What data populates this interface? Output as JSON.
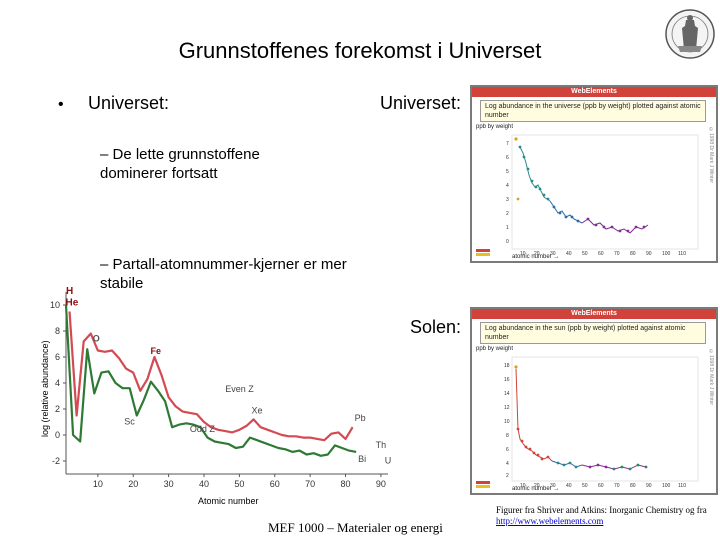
{
  "slide": {
    "title": "Grunnstoffenes forekomst i Universet",
    "bullet_dot": "•",
    "bullet_main": "Universet:",
    "sub1": "– De lette grunnstoffene dominerer fortsatt",
    "sub2": "– Partall-atomnummer-kjerner er mer stabile",
    "label_universe": "Universet:",
    "label_sun": "Solen:",
    "footer": "MEF 1000 – Materialer og energi",
    "credit_text": "Figurer fra Shriver and Atkins: Inorganic Chemistry og fra",
    "credit_link": "http://www.webelements.com"
  },
  "webelements_universe": {
    "header": "WebElements",
    "description": "Log abundance in the universe (ppb by weight) plotted against atomic number",
    "ylabel": "ppb by weight",
    "xlabel": "atomic number →",
    "side": "©1998 Dr Mark J Winter"
  },
  "webelements_sun": {
    "header": "WebElements",
    "description": "Log abundance in the sun (ppb by weight) plotted against atomic number",
    "ylabel": "ppb by weight",
    "xlabel": "atomic number →",
    "side": "©1998 Dr Mark J Winter"
  },
  "big_chart": {
    "ylabel": "log (relative abundance)",
    "xlabel": "Atomic number",
    "annotations": [
      "H",
      "He",
      "O",
      "Fe",
      "Even Z",
      "Sc",
      "Odd Z",
      "Xe",
      "Pb",
      "Bi",
      "Th",
      "U"
    ]
  },
  "chart_data": [
    {
      "type": "line",
      "title": "",
      "xlabel": "Atomic number",
      "ylabel": "log (relative abundance)",
      "xlim": [
        1,
        92
      ],
      "ylim": [
        -3,
        11
      ],
      "x_ticks": [
        10,
        20,
        30,
        40,
        50,
        60,
        70,
        80,
        90
      ],
      "y_ticks": [
        -2,
        0,
        2,
        4,
        6,
        8,
        10
      ],
      "series": [
        {
          "name": "Even Z",
          "color": "#d44a52",
          "x": [
            2,
            4,
            6,
            8,
            10,
            12,
            14,
            16,
            18,
            20,
            22,
            24,
            26,
            28,
            30,
            32,
            34,
            36,
            38,
            40,
            42,
            44,
            46,
            48,
            50,
            52,
            54,
            56,
            58,
            60,
            62,
            64,
            66,
            68,
            70,
            72,
            74,
            76,
            78,
            80,
            82
          ],
          "y": [
            9.5,
            1.5,
            7.2,
            7.8,
            6.5,
            6.4,
            6.5,
            5.9,
            5.1,
            4.8,
            3.4,
            4.3,
            6.0,
            4.6,
            2.9,
            2.2,
            1.8,
            1.7,
            1.6,
            1.0,
            0.6,
            0.4,
            0.3,
            0.2,
            0.4,
            0.7,
            1.2,
            0.6,
            0.4,
            0.2,
            0.0,
            -0.1,
            -0.1,
            -0.2,
            -0.2,
            -0.3,
            -0.4,
            0.1,
            0.2,
            -0.3,
            0.6
          ]
        },
        {
          "name": "Odd Z",
          "color": "#2e7a34",
          "x": [
            1,
            3,
            5,
            7,
            9,
            11,
            13,
            15,
            17,
            19,
            21,
            23,
            25,
            27,
            29,
            31,
            33,
            35,
            37,
            39,
            41,
            43,
            45,
            47,
            49,
            51,
            53,
            55,
            57,
            59,
            61,
            63,
            65,
            67,
            69,
            71,
            73,
            75,
            77,
            79,
            81,
            83
          ],
          "y": [
            10.0,
            0.0,
            -0.5,
            6.6,
            3.2,
            4.8,
            4.9,
            4.0,
            3.6,
            3.6,
            1.5,
            2.7,
            4.1,
            3.4,
            2.6,
            0.6,
            0.8,
            0.9,
            0.8,
            0.6,
            -0.2,
            -0.5,
            -0.6,
            -0.7,
            -1.0,
            -0.9,
            -0.2,
            -0.4,
            -0.6,
            -0.8,
            -1.0,
            -1.1,
            -1.3,
            -1.2,
            -1.5,
            -1.4,
            -1.6,
            -1.5,
            -0.8,
            -1.0,
            -1.2,
            -1.3
          ]
        }
      ]
    }
  ]
}
